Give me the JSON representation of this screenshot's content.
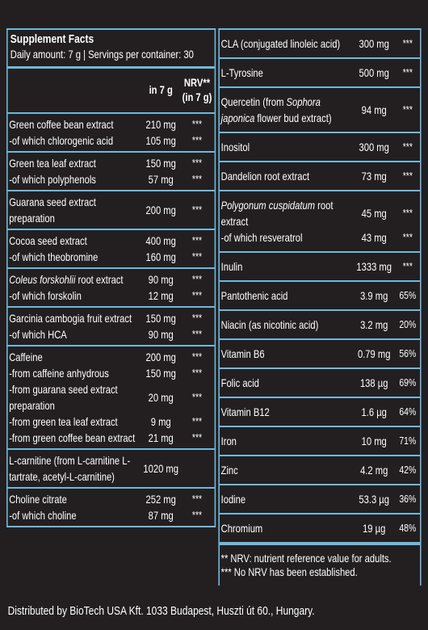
{
  "left": {
    "title": "Supplement Facts",
    "subtitle": "Daily amount: 7 g | Servings per container: 30",
    "header": {
      "amount": "in 7 g",
      "nrv": "NRV** (in 7 g)"
    },
    "groups": [
      [
        {
          "name": "Green coffee bean extract",
          "amount": "210 mg",
          "nrv": "***"
        },
        {
          "name": "-of which chlorogenic acid",
          "amount": "105 mg",
          "nrv": "***"
        }
      ],
      [
        {
          "name": "Green tea leaf extract",
          "amount": "150 mg",
          "nrv": "***"
        },
        {
          "name": "-of which polyphenols",
          "amount": "57 mg",
          "nrv": "***"
        }
      ],
      [
        {
          "name": "Guarana seed extract preparation",
          "amount": "200 mg",
          "nrv": "***"
        }
      ],
      [
        {
          "name": "Cocoa seed extract",
          "amount": "400 mg",
          "nrv": "***"
        },
        {
          "name": "-of which theobromine",
          "amount": "160 mg",
          "nrv": "***"
        }
      ],
      [
        {
          "name": [
            {
              "text": "Coleus forskohlii",
              "italic": true
            },
            {
              "text": " root extract"
            }
          ],
          "amount": "90 mg",
          "nrv": "***"
        },
        {
          "name": "-of which forskolin",
          "amount": "12 mg",
          "nrv": "***"
        }
      ],
      [
        {
          "name": "Garcinia cambogia fruit extract",
          "amount": "150 mg",
          "nrv": "***"
        },
        {
          "name": "-of which HCA",
          "amount": "90 mg",
          "nrv": "***"
        }
      ],
      [
        {
          "name": "Caffeine",
          "amount": "200 mg",
          "nrv": "***"
        },
        {
          "name": "-from caffeine anhydrous",
          "amount": "150 mg",
          "nrv": "***"
        },
        {
          "name": "-from guarana seed extract preparation",
          "amount": "20 mg",
          "nrv": "***"
        },
        {
          "name": "-from green tea leaf extract",
          "amount": "9 mg",
          "nrv": "***"
        },
        {
          "name": "-from green coffee bean extract",
          "amount": "21 mg",
          "nrv": "***"
        }
      ],
      [
        {
          "name": "L-carnitine (from L-carnitine L-tartrate, acetyl-L-carnitine)",
          "amount": "1020 mg"
        }
      ],
      [
        {
          "name": "Choline citrate",
          "amount": "252 mg",
          "nrv": "***"
        },
        {
          "name": "-of which choline",
          "amount": "87 mg",
          "nrv": "***"
        }
      ]
    ]
  },
  "right": {
    "groups": [
      [
        {
          "name": "CLA (conjugated linoleic acid)",
          "amount": "300 mg",
          "nrv": "***"
        }
      ],
      [
        {
          "name": "L-Tyrosine",
          "amount": "500 mg",
          "nrv": "***"
        }
      ],
      [
        {
          "name": [
            {
              "text": "Quercetin (from "
            },
            {
              "text": "Sophora japonica",
              "italic": true
            },
            {
              "text": " flower bud extract)"
            }
          ],
          "amount": "94 mg",
          "nrv": "***"
        }
      ],
      [
        {
          "name": "Inositol",
          "amount": "300 mg",
          "nrv": "***"
        }
      ],
      [
        {
          "name": "Dandelion root extract",
          "amount": "73 mg",
          "nrv": "***"
        }
      ],
      [
        {
          "name": [
            {
              "text": "Polygonum cuspidatum",
              "italic": true
            },
            {
              "text": " root extract"
            }
          ],
          "amount": "45 mg",
          "nrv": "***"
        },
        {
          "name": "-of which resveratrol",
          "amount": "43 mg",
          "nrv": "***"
        }
      ],
      [
        {
          "name": "Inulin",
          "amount": "1333 mg",
          "nrv": "***"
        }
      ],
      [
        {
          "name": "Pantothenic acid",
          "amount": "3.9 mg",
          "nrv": "65%"
        }
      ],
      [
        {
          "name": "Niacin (as nicotinic acid)",
          "amount": "3.2 mg",
          "nrv": "20%"
        }
      ],
      [
        {
          "name": "Vitamin B6",
          "amount": "0.79 mg",
          "nrv": "56%"
        }
      ],
      [
        {
          "name": "Folic acid",
          "amount": "138 µg",
          "nrv": "69%"
        }
      ],
      [
        {
          "name": "Vitamin B12",
          "amount": "1.6 µg",
          "nrv": "64%"
        }
      ],
      [
        {
          "name": "Iron",
          "amount": "10 mg",
          "nrv": "71%"
        }
      ],
      [
        {
          "name": "Zinc",
          "amount": "4.2 mg",
          "nrv": "42%"
        }
      ],
      [
        {
          "name": "Iodine",
          "amount": "53.3 µg",
          "nrv": "36%"
        }
      ],
      [
        {
          "name": "Chromium",
          "amount": "19 µg",
          "nrv": "48%"
        }
      ]
    ],
    "notes": [
      "** NRV: nutrient reference value for adults.",
      "*** No NRV has been established."
    ]
  },
  "footer": "Distributed by BioTech USA Kft. 1033 Budapest, Huszti út 60., Hungary."
}
